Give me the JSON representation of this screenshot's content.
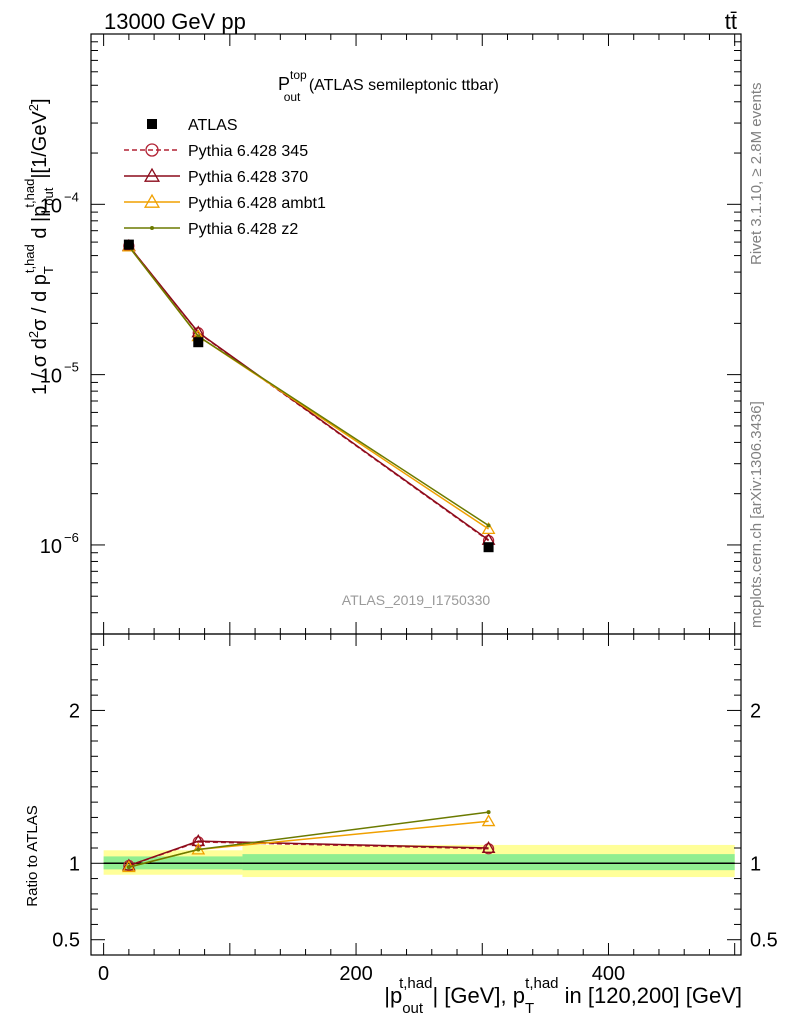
{
  "header": {
    "left": "13000 GeV pp",
    "right": "tt̄"
  },
  "side_texts": {
    "rivet": "Rivet 3.1.10, ≥ 2.8M events",
    "mcplots": "mcplots.cern.ch [arXiv:1306.3436]"
  },
  "watermark": "ATLAS_2019_I1750330",
  "chart_data": [
    {
      "type": "line",
      "title": {
        "main": "P",
        "sup": "top",
        "sub": "out",
        "rest": " (ATLAS semileptonic ttbar)"
      },
      "ylabel": "1 / σ d²σ / d p_T^{t,had} d |p_out^{t,had}| [1/GeV²]",
      "yscale": "log",
      "ylim": [
        3e-07,
        0.001
      ],
      "xlim": [
        -10,
        505
      ],
      "ytick_labels": [
        "10",
        "10",
        "10"
      ],
      "ytick_exponents": [
        "−4",
        "−5",
        "−6"
      ],
      "ytick_values": [
        0.0001,
        1e-05,
        1e-06
      ],
      "legend": {
        "placement": "top-left"
      },
      "reference": {
        "name": "ATLAS",
        "x": [
          20,
          75,
          305
        ],
        "y": [
          5.8e-05,
          1.55e-05,
          9.7e-07
        ],
        "color": "#000000",
        "marker": "square"
      },
      "series": [
        {
          "name": "Pythia 6.428 345",
          "x": [
            20,
            75,
            305
          ],
          "y": [
            5.7e-05,
            1.76e-05,
            1.06e-06
          ],
          "color": "#b22234",
          "marker": "open-circle",
          "dashed": true
        },
        {
          "name": "Pythia 6.428 370",
          "x": [
            20,
            75,
            305
          ],
          "y": [
            5.7e-05,
            1.77e-05,
            1.07e-06
          ],
          "color": "#8b0a1a",
          "marker": "open-triangle",
          "dashed": false
        },
        {
          "name": "Pythia 6.428 ambt1",
          "x": [
            20,
            75,
            305
          ],
          "y": [
            5.65e-05,
            1.68e-05,
            1.24e-06
          ],
          "color": "#f0a000",
          "marker": "open-triangle",
          "dashed": false
        },
        {
          "name": "Pythia 6.428 z2",
          "x": [
            20,
            75,
            305
          ],
          "y": [
            5.65e-05,
            1.68e-05,
            1.3e-06
          ],
          "color": "#6b7a00",
          "marker": "dot",
          "dashed": false
        }
      ]
    },
    {
      "type": "line",
      "ylabel": "Ratio to ATLAS",
      "xlabel": "|p_out^{t,had}| [GeV], p_T^{t,had} in [120,200] [GeV]",
      "ylim": [
        0.4,
        2.5
      ],
      "xlim": [
        -10,
        505
      ],
      "xtick_values": [
        0,
        200,
        400
      ],
      "xtick_labels": [
        "0",
        "200",
        "400"
      ],
      "ytick_values": [
        0.5,
        1,
        2
      ],
      "ytick_labels": [
        "0.5",
        "1",
        "2"
      ],
      "bands": [
        {
          "x": [
            0,
            110
          ],
          "outer": [
            0.925,
            1.085
          ],
          "inner": [
            0.96,
            1.045
          ]
        },
        {
          "x": [
            110,
            500
          ],
          "outer": [
            0.91,
            1.12
          ],
          "inner": [
            0.955,
            1.06
          ]
        }
      ],
      "series": [
        {
          "name": "Pythia 6.428 345",
          "x": [
            20,
            75,
            305
          ],
          "y": [
            0.985,
            1.14,
            1.095
          ],
          "color": "#b22234",
          "marker": "open-circle",
          "dashed": true
        },
        {
          "name": "Pythia 6.428 370",
          "x": [
            20,
            75,
            305
          ],
          "y": [
            0.985,
            1.145,
            1.1
          ],
          "color": "#8b0a1a",
          "marker": "open-triangle",
          "dashed": false
        },
        {
          "name": "Pythia 6.428 ambt1",
          "x": [
            20,
            75,
            305
          ],
          "y": [
            0.975,
            1.09,
            1.275
          ],
          "color": "#f0a000",
          "marker": "open-triangle",
          "dashed": false
        },
        {
          "name": "Pythia 6.428 z2",
          "x": [
            20,
            75,
            305
          ],
          "y": [
            0.975,
            1.09,
            1.335
          ],
          "color": "#6b7a00",
          "marker": "dot",
          "dashed": false
        }
      ]
    }
  ]
}
